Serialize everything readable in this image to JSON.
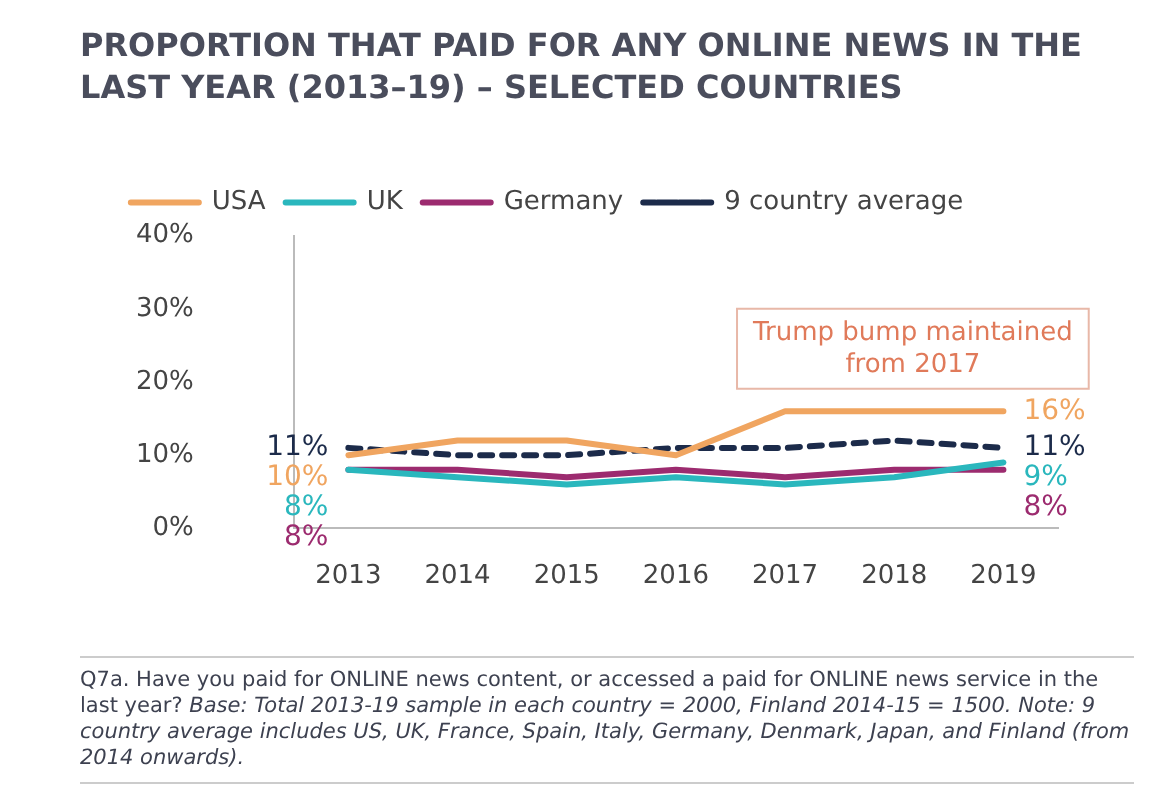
{
  "chart_data": {
    "type": "line",
    "title": "PROPORTION THAT PAID FOR ANY ONLINE NEWS IN THE LAST YEAR (2013–19) – SELECTED COUNTRIES",
    "categories": [
      "2013",
      "2014",
      "2015",
      "2016",
      "2017",
      "2018",
      "2019"
    ],
    "series": [
      {
        "name": "USA",
        "color": "#f0a560",
        "values": [
          10,
          12,
          12,
          10,
          16,
          16,
          16
        ],
        "value_labels": [
          "10%",
          null,
          null,
          null,
          null,
          null,
          "16%"
        ]
      },
      {
        "name": "UK",
        "color": "#2ab7bd",
        "values": [
          8,
          7,
          6,
          7,
          6,
          7,
          9
        ],
        "value_labels": [
          "8%",
          null,
          null,
          null,
          null,
          null,
          "9%"
        ]
      },
      {
        "name": "Germany",
        "color": "#9c2b6f",
        "values": [
          8,
          8,
          7,
          8,
          7,
          8,
          8
        ],
        "value_labels": [
          "8%",
          null,
          null,
          null,
          null,
          null,
          "8%"
        ]
      },
      {
        "name": "9 country average",
        "color": "#1c2b4a",
        "line_style": "dashed",
        "values": [
          11,
          10,
          10,
          11,
          11,
          12,
          11
        ],
        "value_labels": [
          "11%",
          null,
          null,
          null,
          null,
          null,
          "11%"
        ]
      }
    ],
    "ylim": [
      0,
      40
    ],
    "yticks": [
      {
        "value": 0,
        "label": "0%"
      },
      {
        "value": 10,
        "label": "10%"
      },
      {
        "value": 20,
        "label": "20%"
      },
      {
        "value": 30,
        "label": "30%"
      },
      {
        "value": 40,
        "label": "40%"
      }
    ],
    "grid": false,
    "legend": "top",
    "marker": "none",
    "annotations": [
      "Trump bump maintained from 2017",
      "Q7a. Have you paid for ONLINE news content, or accessed a paid for ONLINE news service in the last year?",
      "Base: Total 2013-19 sample in each country = 2000, Finland 2014-15 = 1500. Note: 9 country average includes US, UK, France, Spain, Italy, Germany, Denmark, Japan, and Finland (from 2014 onwards)."
    ]
  }
}
